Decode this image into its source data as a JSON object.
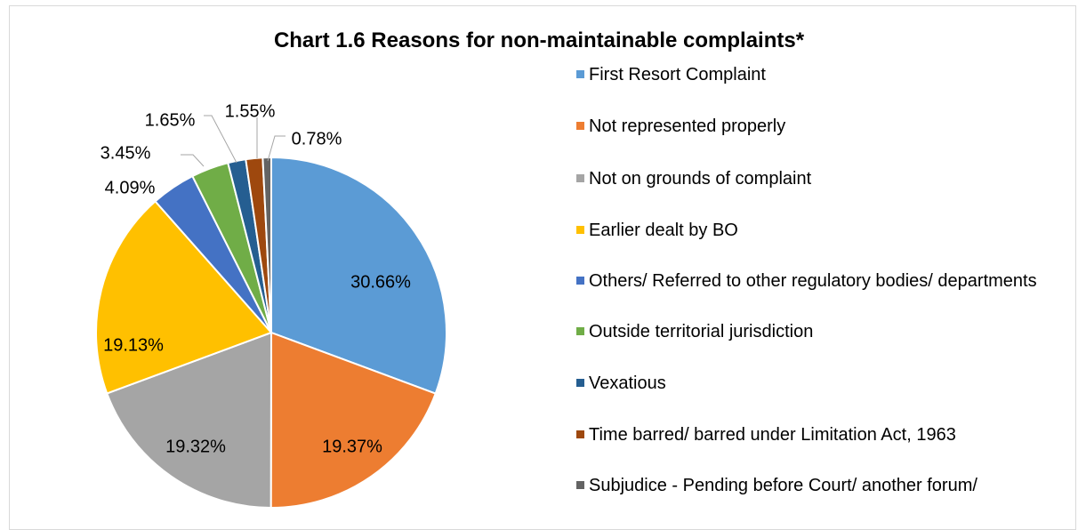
{
  "chart_data": {
    "type": "pie",
    "title": "Chart 1.6 Reasons for non-maintainable complaints*",
    "categories": [
      "First Resort Complaint",
      "Not represented properly",
      "Not on grounds of complaint",
      "Earlier dealt by BO",
      "Others/ Referred to other regulatory bodies/ departments",
      "Outside territorial jurisdiction",
      "Vexatious",
      "Time barred/ barred under Limitation Act, 1963",
      "Subjudice - Pending before Court/ another forum/"
    ],
    "values": [
      30.66,
      19.37,
      19.32,
      19.13,
      4.09,
      3.45,
      1.65,
      1.55,
      0.78
    ],
    "labels": [
      "30.66%",
      "19.37%",
      "19.32%",
      "19.13%",
      "4.09%",
      "3.45%",
      "1.65%",
      "1.55%",
      "0.78%"
    ],
    "colors": [
      "#5b9bd5",
      "#ed7d31",
      "#a5a5a5",
      "#ffc000",
      "#4472c4",
      "#70ad47",
      "#255e91",
      "#9e480e",
      "#636363"
    ],
    "legend_position": "right"
  }
}
